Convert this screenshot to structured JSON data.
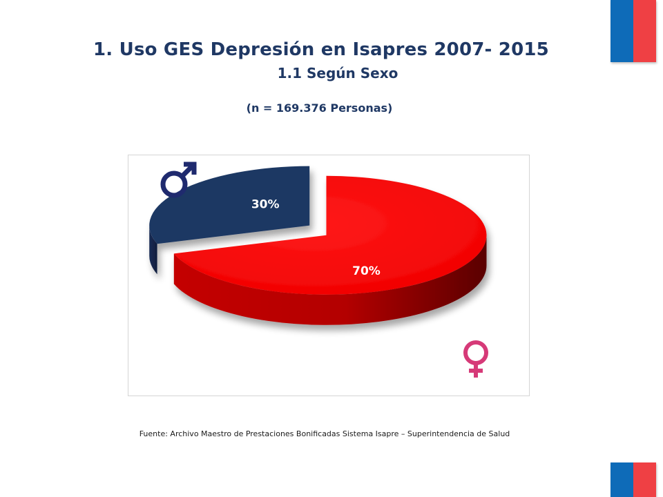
{
  "title": "1. Uso GES Depresión en Isapres 2007- 2015",
  "subtitle": "1.1 Según Sexo",
  "n_text": "(n = 169.376 Personas)",
  "source": "Fuente: Archivo Maestro de Prestaciones Bonificadas Sistema Isapre – Superintendencia de Salud",
  "colors": {
    "title": "#1f3864",
    "male_slice": "#1f3864",
    "female_slice": "#ff0000",
    "male_symbol": "#1f2a6e",
    "female_symbol": "#d63a78",
    "flag_blue": "#0e6bb8",
    "flag_red": "#ef4044"
  },
  "icons": [
    "male-symbol-icon",
    "female-symbol-icon",
    "chile-flag-icon"
  ],
  "chart_data": {
    "type": "pie",
    "style": "3d-exploded",
    "slices": [
      {
        "category": "Hombres",
        "value": 30,
        "label": "30%",
        "color": "#1f3864",
        "icon": "male-symbol-icon"
      },
      {
        "category": "Mujeres",
        "value": 70,
        "label": "70%",
        "color": "#ff0000",
        "icon": "female-symbol-icon"
      }
    ],
    "legend": "none"
  }
}
